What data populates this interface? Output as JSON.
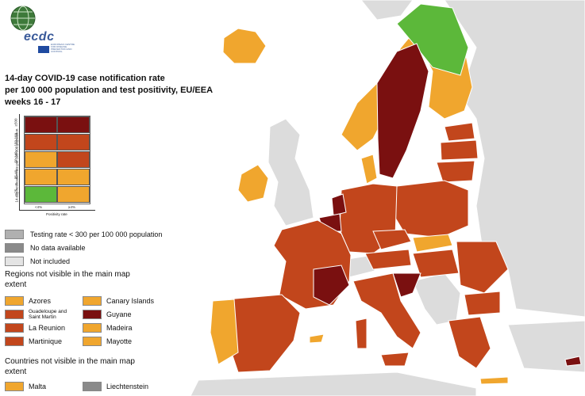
{
  "logo": {
    "text": "ecdc",
    "subtext": "EUROPEAN CENTRE FOR DISEASE PREVENTION AND CONTROL"
  },
  "title": {
    "line1": "14-day COVID-19 case notification rate",
    "line2": "per 100 000 population and test positivity, EU/EEA",
    "line3": "weeks 16 - 17"
  },
  "matrix": {
    "y_axis_label": "14-day notification rate per 100 000 population",
    "x_axis_label": "Positivity rate",
    "y_ticks": [
      "<25",
      "25-49",
      "50-149",
      "150-199",
      "≥500"
    ],
    "x_ticks": [
      "<4%",
      "≥4%"
    ],
    "colors": {
      "green": "#5cb83a",
      "orange": "#f0a62e",
      "red": "#c2461c",
      "darkred": "#7a1010"
    },
    "rows": [
      [
        "darkred",
        "darkred"
      ],
      [
        "red",
        "red"
      ],
      [
        "orange",
        "red"
      ],
      [
        "orange",
        "orange"
      ],
      [
        "green",
        "orange"
      ]
    ]
  },
  "legend_top": [
    {
      "label": "Testing rate < 300 per 100 000 population",
      "color": "#b0b0b0"
    },
    {
      "label": "No data available",
      "color": "#8a8a8a"
    },
    {
      "label": "Not included",
      "color": "#e4e4e4"
    }
  ],
  "regions": {
    "title": "Regions not visible in the main map extent",
    "items": [
      {
        "label": "Azores",
        "color": "#f0a62e"
      },
      {
        "label": "Canary Islands",
        "color": "#f0a62e"
      },
      {
        "label": "Guadeloupe and Saint Martin",
        "color": "#c2461c"
      },
      {
        "label": "Guyane",
        "color": "#7a1010"
      },
      {
        "label": "La Reunion",
        "color": "#c2461c"
      },
      {
        "label": "Madeira",
        "color": "#f0a62e"
      },
      {
        "label": "Martinique",
        "color": "#c2461c"
      },
      {
        "label": "Mayotte",
        "color": "#f0a62e"
      }
    ]
  },
  "countries": {
    "title": "Countries not visible in the main map extent",
    "items": [
      {
        "label": "Malta",
        "color": "#f0a62e"
      },
      {
        "label": "Liechtenstein",
        "color": "#8a8a8a"
      }
    ]
  }
}
